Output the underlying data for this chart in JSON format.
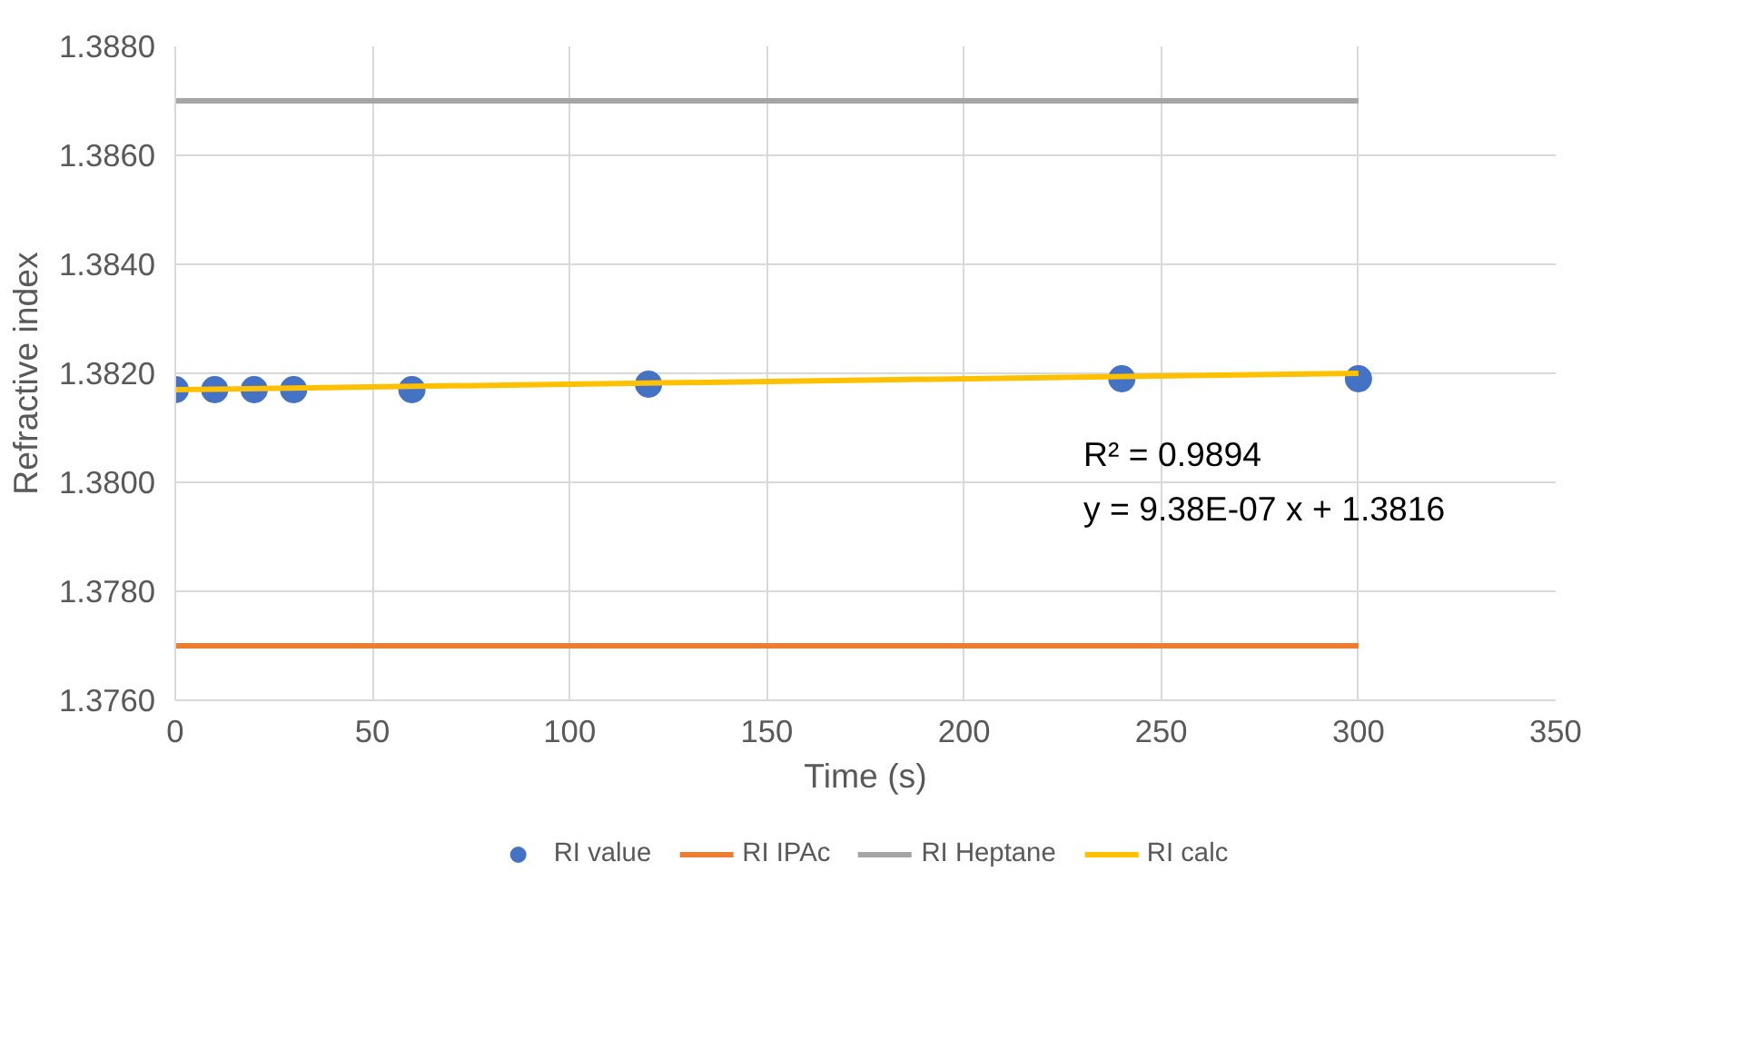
{
  "chart_data": {
    "type": "line",
    "xlabel": "Time (s)",
    "ylabel": "Refractive index",
    "xlim": [
      0,
      350
    ],
    "xticks": [
      0,
      50,
      100,
      150,
      200,
      250,
      300,
      350
    ],
    "ylim": [
      1.376,
      1.388
    ],
    "yticks": [
      {
        "value": 1.376,
        "label": "1.3760"
      },
      {
        "value": 1.378,
        "label": "1.3780"
      },
      {
        "value": 1.38,
        "label": "1.3800"
      },
      {
        "value": 1.382,
        "label": "1.3820"
      },
      {
        "value": 1.384,
        "label": "1.3840"
      },
      {
        "value": 1.386,
        "label": "1.3860"
      },
      {
        "value": 1.388,
        "label": "1.3880"
      }
    ],
    "grid": true,
    "legend": "bottom",
    "series": [
      {
        "name": "RI value",
        "type": "scatter",
        "marker": "circle",
        "color": "#4472c4",
        "x": [
          0,
          10,
          20,
          30,
          60,
          120,
          240,
          300
        ],
        "values": [
          1.3817,
          1.3817,
          1.3817,
          1.3817,
          1.3817,
          1.3818,
          1.3819,
          1.3819
        ]
      },
      {
        "name": "RI IPAc",
        "color": "#ed7d31",
        "x": [
          0,
          300
        ],
        "values": [
          1.377,
          1.377
        ]
      },
      {
        "name": "RI Heptane",
        "color": "#a5a5a5",
        "x": [
          0,
          300
        ],
        "values": [
          1.387,
          1.387
        ]
      },
      {
        "name": "RI calc",
        "color": "#ffc000",
        "x": [
          0,
          300
        ],
        "values": [
          1.3817,
          1.382
        ]
      }
    ],
    "annotations": [
      "R² = 0.9894",
      "y = 9.38E-07 x + 1.3816"
    ]
  }
}
